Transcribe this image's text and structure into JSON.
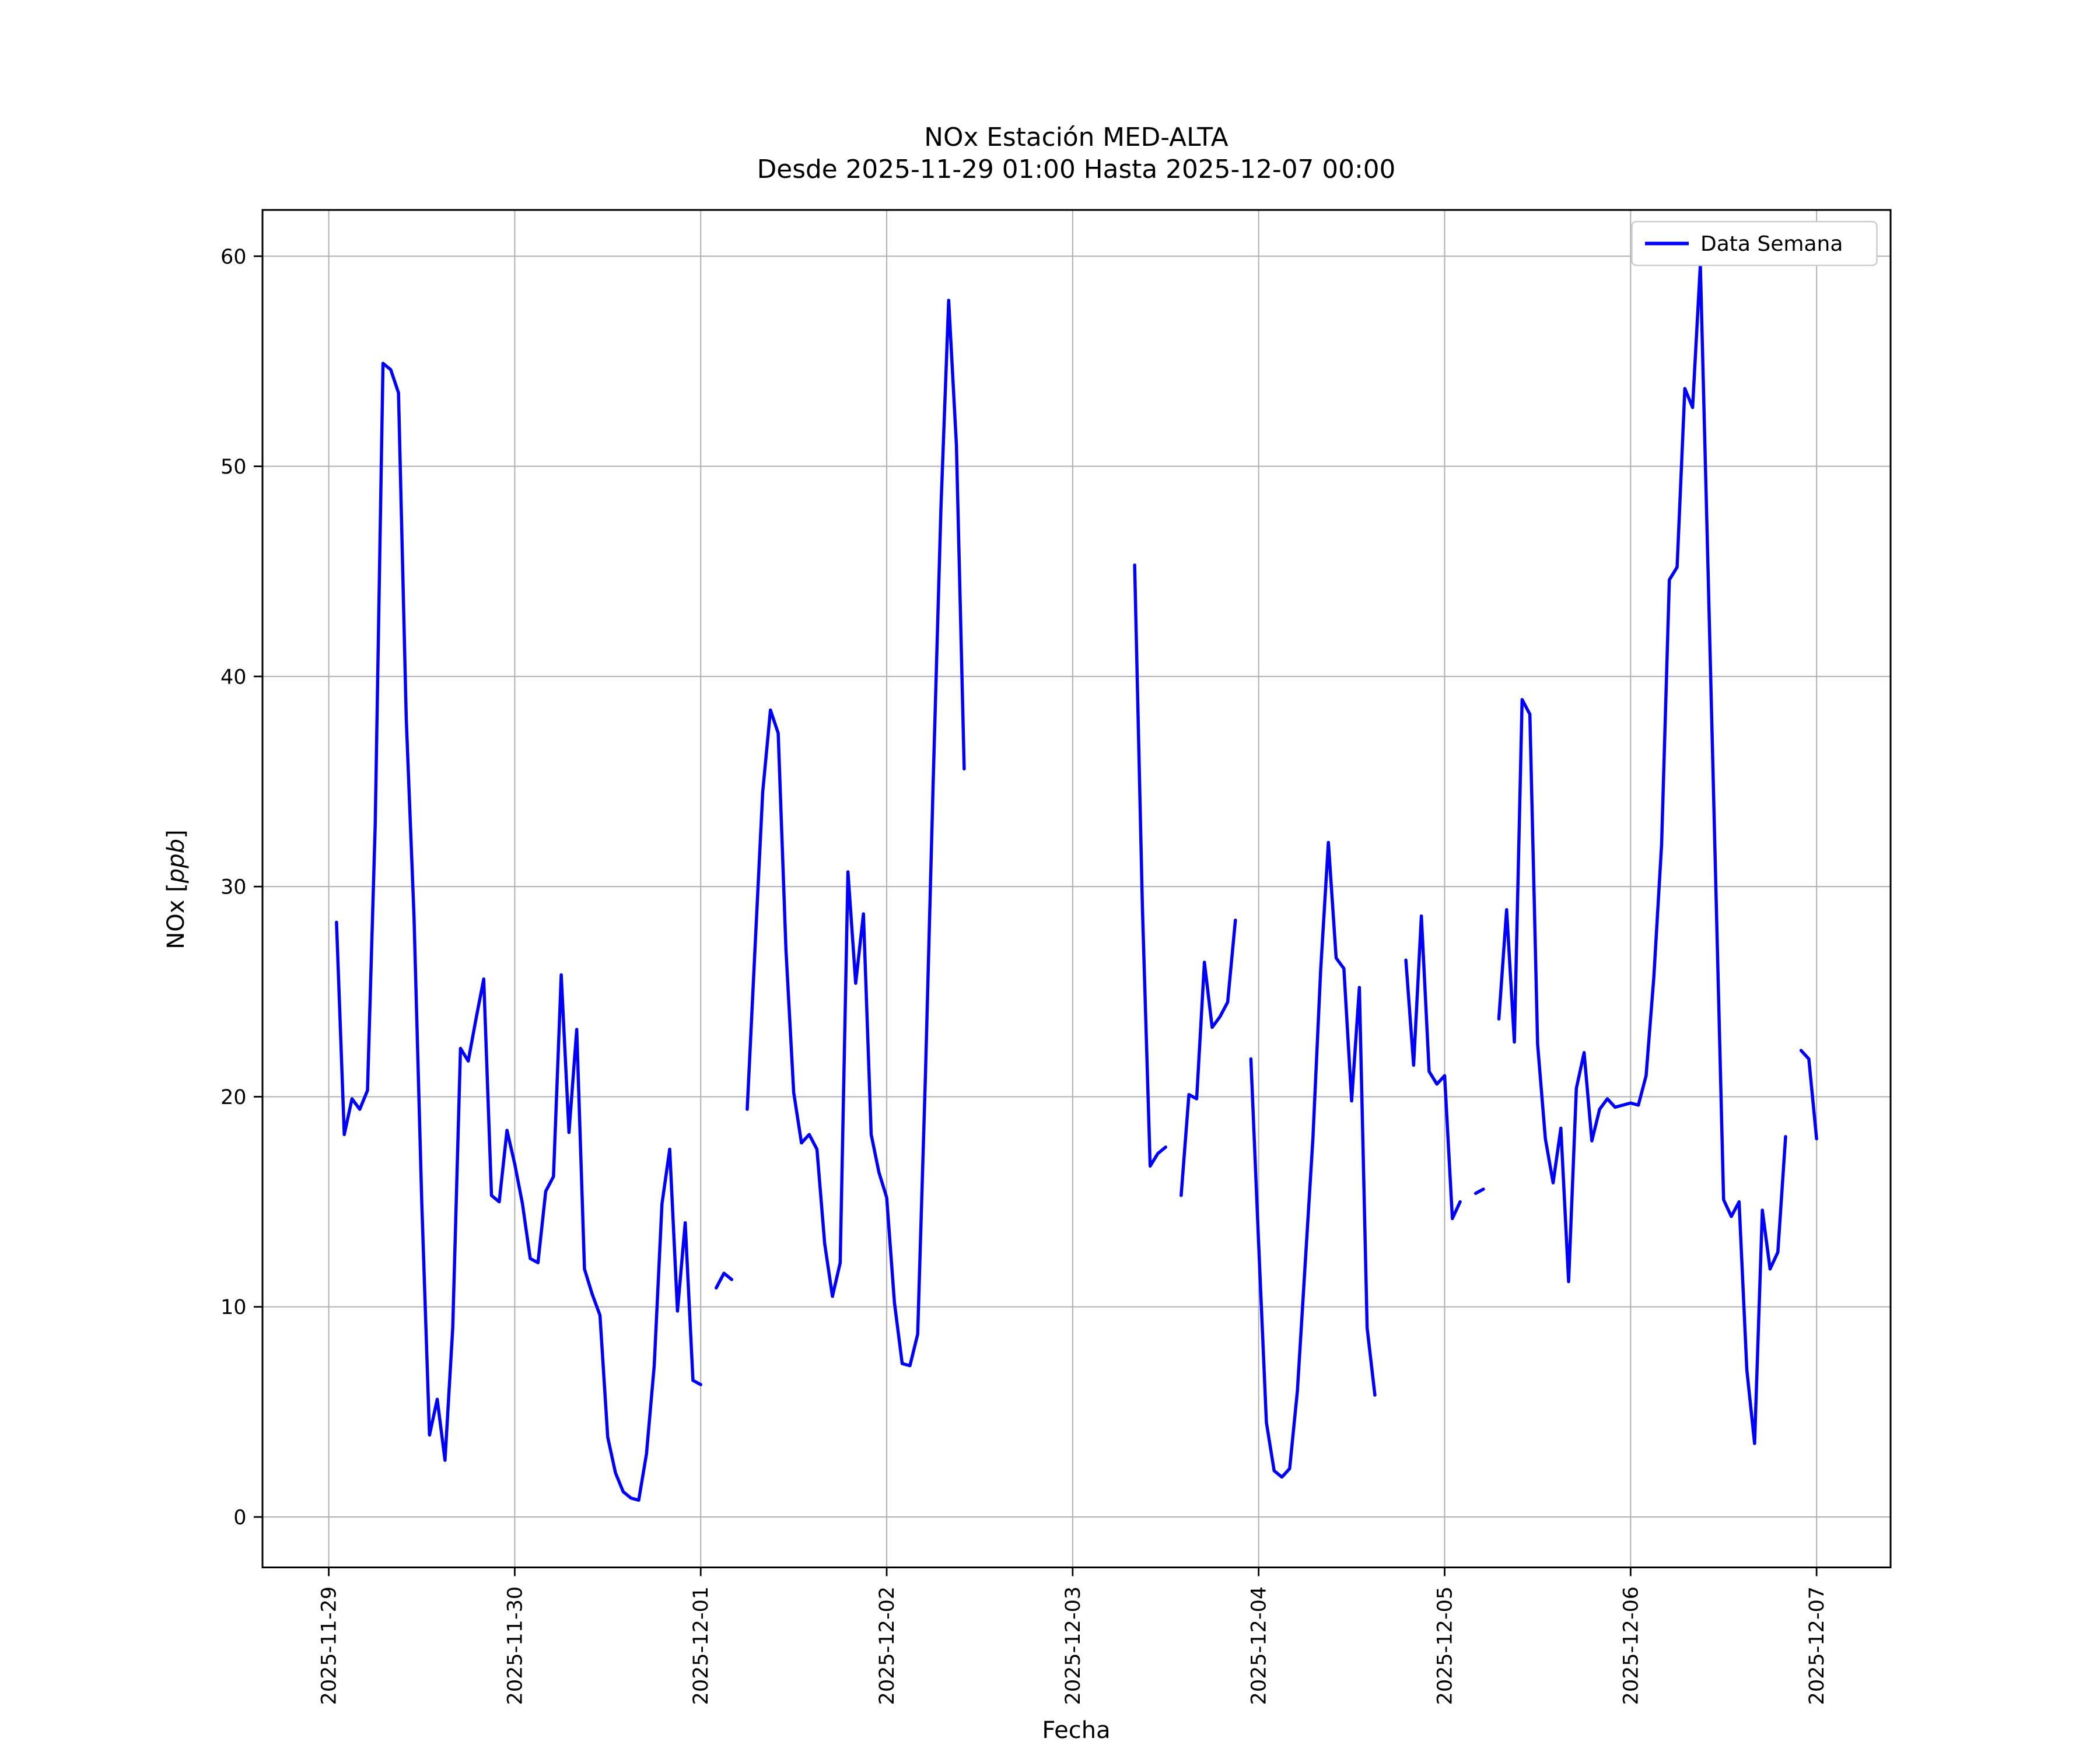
{
  "figure": {
    "title": "NOx Estación MED-ALTA",
    "subtitle": "Desde 2025-11-29 01:00 Hasta 2025-12-07 00:00",
    "xlabel": "Fecha",
    "ylabel_prefix": "NOx [",
    "ylabel_italic": "ppb",
    "ylabel_suffix": "]",
    "legend_label": "Data Semana"
  },
  "chart_data": {
    "type": "line",
    "title": "NOx Estación MED-ALTA",
    "subtitle": "Desde 2025-11-29 01:00 Hasta 2025-12-07 00:00",
    "xlabel": "Fecha",
    "ylabel": "NOx [ppb]",
    "series_name": "Data Semana",
    "line_color": "#0000ff",
    "grid": true,
    "legend_position": "upper right",
    "time_start": "2025-11-29 01:00",
    "time_end": "2025-12-07 00:00",
    "interval": "hourly",
    "start_hour_offset": 1,
    "xlim_hours": [
      -8.55,
      201.55
    ],
    "ylim": [
      -2.4,
      62.2
    ],
    "y_ticks": [
      0,
      10,
      20,
      30,
      40,
      50,
      60
    ],
    "x_ticks": [
      {
        "hour": 0,
        "label": "2025-11-29"
      },
      {
        "hour": 24,
        "label": "2025-11-30"
      },
      {
        "hour": 48,
        "label": "2025-12-01"
      },
      {
        "hour": 72,
        "label": "2025-12-02"
      },
      {
        "hour": 96,
        "label": "2025-12-03"
      },
      {
        "hour": 120,
        "label": "2025-12-04"
      },
      {
        "hour": 144,
        "label": "2025-12-05"
      },
      {
        "hour": 168,
        "label": "2025-12-06"
      },
      {
        "hour": 192,
        "label": "2025-12-07"
      }
    ],
    "values": [
      28.3,
      18.2,
      19.9,
      19.4,
      20.3,
      33.0,
      54.9,
      54.6,
      53.5,
      38.0,
      28.6,
      15.0,
      3.9,
      5.6,
      2.7,
      9.0,
      22.3,
      21.7,
      23.7,
      25.6,
      15.3,
      15.0,
      18.4,
      16.8,
      14.9,
      12.3,
      12.1,
      15.5,
      16.2,
      25.8,
      18.3,
      23.2,
      11.8,
      10.6,
      9.6,
      3.8,
      2.1,
      1.2,
      0.9,
      0.8,
      3.0,
      7.2,
      14.9,
      17.5,
      9.8,
      14.0,
      6.5,
      6.3,
      null,
      10.9,
      11.6,
      11.3,
      null,
      19.4,
      27.0,
      34.5,
      38.4,
      37.3,
      27.0,
      20.2,
      17.8,
      18.2,
      17.5,
      13.0,
      10.5,
      12.1,
      30.7,
      25.4,
      28.7,
      18.2,
      16.4,
      15.2,
      10.2,
      7.3,
      7.2,
      8.7,
      21.0,
      35.0,
      48.0,
      57.9,
      51.0,
      35.6,
      null,
      null,
      null,
      null,
      null,
      null,
      null,
      null,
      null,
      null,
      null,
      null,
      null,
      null,
      null,
      null,
      null,
      null,
      null,
      null,
      null,
      45.3,
      29.0,
      16.7,
      17.3,
      17.6,
      null,
      15.3,
      20.1,
      19.9,
      26.4,
      23.3,
      23.8,
      24.5,
      28.4,
      null,
      21.8,
      13.0,
      4.5,
      2.2,
      1.9,
      2.3,
      6.0,
      12.0,
      18.0,
      26.0,
      32.1,
      26.6,
      26.1,
      19.8,
      25.2,
      9.0,
      5.8,
      null,
      null,
      null,
      26.5,
      21.5,
      28.6,
      21.2,
      20.6,
      21.0,
      14.2,
      15.0,
      null,
      15.4,
      15.6,
      null,
      23.7,
      28.9,
      22.6,
      38.9,
      38.2,
      22.5,
      18.0,
      15.9,
      18.5,
      11.2,
      20.4,
      22.1,
      17.9,
      19.4,
      19.9,
      19.5,
      19.6,
      19.7,
      19.6,
      21.0,
      25.7,
      32.0,
      44.6,
      45.2,
      53.7,
      52.8,
      59.6,
      45.0,
      30.0,
      15.1,
      14.3,
      15.0,
      7.0,
      3.5,
      14.6,
      11.8,
      12.6,
      18.1,
      null,
      22.2,
      21.8,
      18.0
    ]
  }
}
